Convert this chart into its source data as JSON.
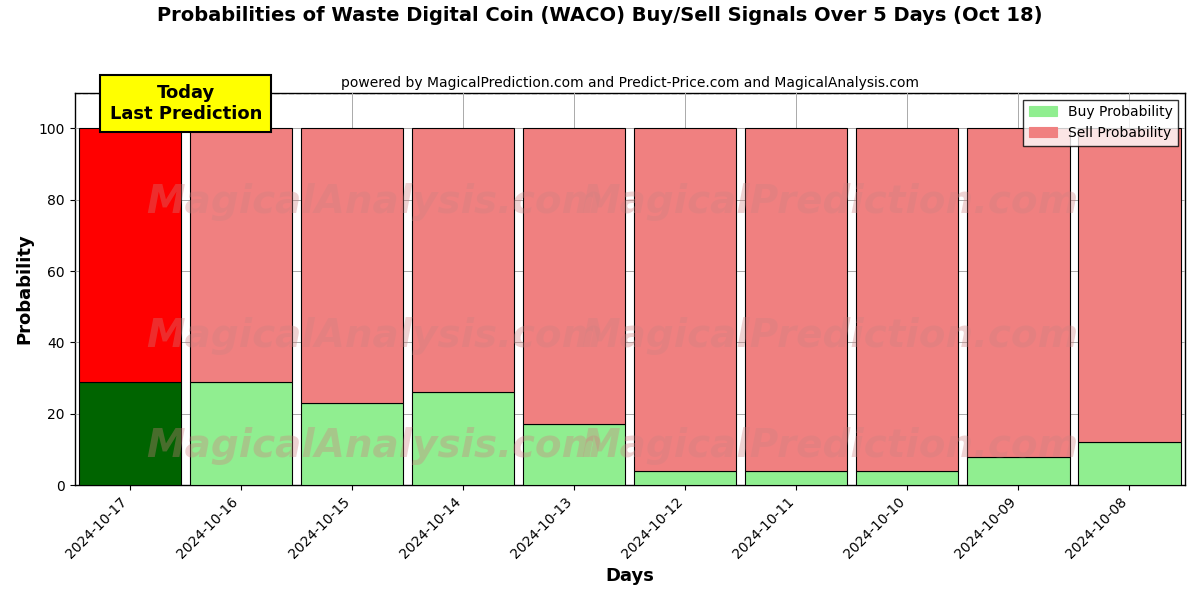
{
  "title": "Probabilities of Waste Digital Coin (WACO) Buy/Sell Signals Over 5 Days (Oct 18)",
  "subtitle": "powered by MagicalPrediction.com and Predict-Price.com and MagicalAnalysis.com",
  "xlabel": "Days",
  "ylabel": "Probability",
  "categories": [
    "2024-10-17",
    "2024-10-16",
    "2024-10-15",
    "2024-10-14",
    "2024-10-13",
    "2024-10-12",
    "2024-10-11",
    "2024-10-10",
    "2024-10-09",
    "2024-10-08"
  ],
  "buy_values": [
    29,
    29,
    23,
    26,
    17,
    4,
    4,
    4,
    8,
    12
  ],
  "sell_values": [
    71,
    71,
    77,
    74,
    83,
    96,
    96,
    96,
    92,
    88
  ],
  "today_bar_index": 0,
  "today_buy_color": "#006400",
  "today_sell_color": "#ff0000",
  "buy_color": "#90ee90",
  "sell_color": "#f08080",
  "today_label_bg": "#ffff00",
  "today_label_text": "Today\nLast Prediction",
  "legend_buy_label": "Buy Probability",
  "legend_sell_label": "Sell Probability",
  "ylim": [
    0,
    110
  ],
  "yticks": [
    0,
    20,
    40,
    60,
    80,
    100
  ],
  "dashed_line_y": 110,
  "background_color": "#ffffff",
  "grid_color": "#aaaaaa",
  "bar_width": 0.92
}
